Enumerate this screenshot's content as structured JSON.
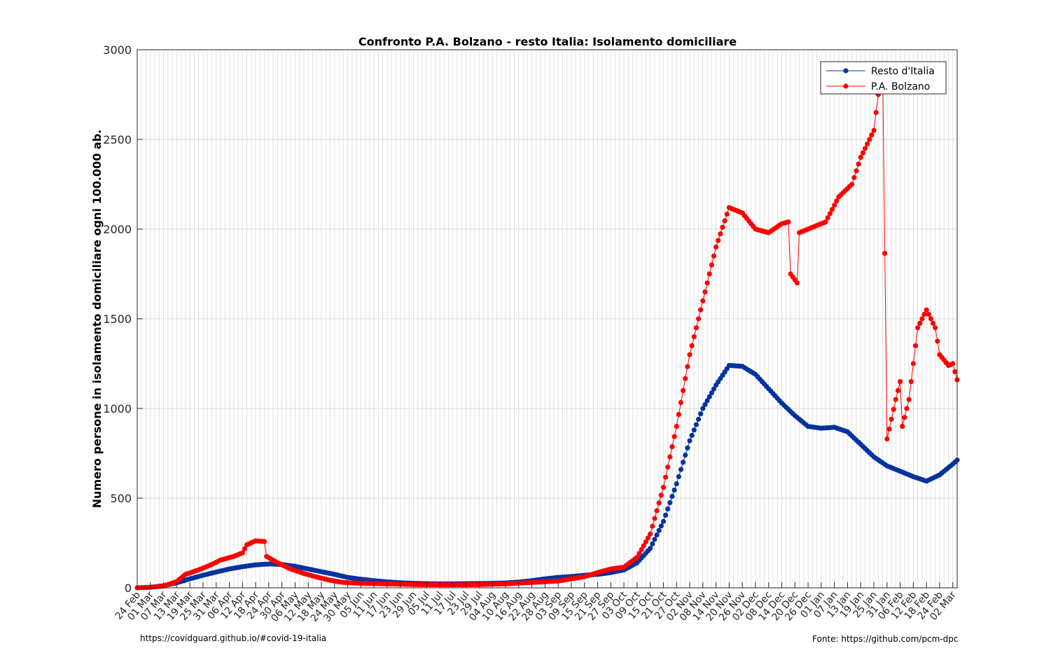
{
  "chart_data": {
    "type": "line",
    "title": "Confronto P.A. Bolzano - resto Italia: Isolamento domiciliare",
    "xlabel": "",
    "ylabel": "Numero persone in isolamento domiciliare ogni 100.000 ab.",
    "ylim": [
      0,
      3000
    ],
    "yticks": [
      0,
      500,
      1000,
      1500,
      2000,
      2500,
      3000
    ],
    "x_start_date": "2020-02-24",
    "x_end_date": "2021-03-04",
    "x_tick_labels": [
      "24 Feb",
      "01 Mar",
      "07 Mar",
      "13 Mar",
      "19 Mar",
      "25 Mar",
      "31 Mar",
      "06 Apr",
      "12 Apr",
      "18 Apr",
      "24 Apr",
      "30 Apr",
      "06 May",
      "12 May",
      "18 May",
      "24 May",
      "30 May",
      "05 Jun",
      "11 Jun",
      "17 Jun",
      "23 Jun",
      "29 Jun",
      "05 Jul",
      "11 Jul",
      "17 Jul",
      "23 Jul",
      "29 Jul",
      "04 Aug",
      "10 Aug",
      "16 Aug",
      "22 Aug",
      "28 Aug",
      "03 Sep",
      "09 Sep",
      "15 Sep",
      "21 Sep",
      "27 Sep",
      "03 Oct",
      "09 Oct",
      "15 Oct",
      "21 Oct",
      "27 Oct",
      "02 Nov",
      "08 Nov",
      "14 Nov",
      "20 Nov",
      "26 Nov",
      "02 Dec",
      "08 Dec",
      "14 Dec",
      "20 Dec",
      "26 Dec",
      "01 Jan",
      "07 Jan",
      "13 Jan",
      "19 Jan",
      "25 Jan",
      "31 Jan",
      "06 Feb",
      "12 Feb",
      "18 Feb",
      "24 Feb",
      "02 Mar"
    ],
    "grid": true,
    "legend_position": "top-right",
    "series": [
      {
        "name": "Resto d'Italia",
        "color": "#0033a0",
        "points": [
          [
            "2020-02-24",
            0
          ],
          [
            "2020-03-01",
            3
          ],
          [
            "2020-03-07",
            12
          ],
          [
            "2020-03-13",
            28
          ],
          [
            "2020-03-19",
            50
          ],
          [
            "2020-03-25",
            70
          ],
          [
            "2020-03-31",
            88
          ],
          [
            "2020-04-06",
            105
          ],
          [
            "2020-04-12",
            118
          ],
          [
            "2020-04-18",
            128
          ],
          [
            "2020-04-24",
            133
          ],
          [
            "2020-04-30",
            130
          ],
          [
            "2020-05-06",
            120
          ],
          [
            "2020-05-12",
            105
          ],
          [
            "2020-05-18",
            90
          ],
          [
            "2020-05-24",
            75
          ],
          [
            "2020-05-30",
            58
          ],
          [
            "2020-06-05",
            48
          ],
          [
            "2020-06-11",
            40
          ],
          [
            "2020-06-17",
            33
          ],
          [
            "2020-06-23",
            28
          ],
          [
            "2020-06-29",
            25
          ],
          [
            "2020-07-05",
            23
          ],
          [
            "2020-07-11",
            22
          ],
          [
            "2020-07-17",
            22
          ],
          [
            "2020-07-23",
            23
          ],
          [
            "2020-07-29",
            24
          ],
          [
            "2020-08-04",
            25
          ],
          [
            "2020-08-10",
            27
          ],
          [
            "2020-08-16",
            32
          ],
          [
            "2020-08-22",
            40
          ],
          [
            "2020-08-28",
            50
          ],
          [
            "2020-09-03",
            58
          ],
          [
            "2020-09-09",
            63
          ],
          [
            "2020-09-15",
            70
          ],
          [
            "2020-09-21",
            75
          ],
          [
            "2020-09-27",
            85
          ],
          [
            "2020-10-03",
            100
          ],
          [
            "2020-10-09",
            140
          ],
          [
            "2020-10-15",
            220
          ],
          [
            "2020-10-21",
            370
          ],
          [
            "2020-10-27",
            580
          ],
          [
            "2020-11-02",
            820
          ],
          [
            "2020-11-08",
            1000
          ],
          [
            "2020-11-14",
            1130
          ],
          [
            "2020-11-20",
            1240
          ],
          [
            "2020-11-26",
            1235
          ],
          [
            "2020-12-02",
            1190
          ],
          [
            "2020-12-08",
            1110
          ],
          [
            "2020-12-14",
            1030
          ],
          [
            "2020-12-20",
            960
          ],
          [
            "2020-12-26",
            900
          ],
          [
            "2021-01-01",
            890
          ],
          [
            "2021-01-07",
            895
          ],
          [
            "2021-01-13",
            870
          ],
          [
            "2021-01-19",
            800
          ],
          [
            "2021-01-25",
            730
          ],
          [
            "2021-01-31",
            680
          ],
          [
            "2021-02-06",
            650
          ],
          [
            "2021-02-12",
            620
          ],
          [
            "2021-02-18",
            595
          ],
          [
            "2021-02-24",
            630
          ],
          [
            "2021-03-02",
            690
          ],
          [
            "2021-03-04",
            712
          ]
        ]
      },
      {
        "name": "P.A. Bolzano",
        "color": "#ff0000",
        "points": [
          [
            "2020-02-24",
            0
          ],
          [
            "2020-03-01",
            3
          ],
          [
            "2020-03-07",
            10
          ],
          [
            "2020-03-13",
            35
          ],
          [
            "2020-03-17",
            75
          ],
          [
            "2020-03-23",
            100
          ],
          [
            "2020-03-29",
            130
          ],
          [
            "2020-04-02",
            155
          ],
          [
            "2020-04-08",
            175
          ],
          [
            "2020-04-12",
            195
          ],
          [
            "2020-04-14",
            240
          ],
          [
            "2020-04-18",
            262
          ],
          [
            "2020-04-22",
            258
          ],
          [
            "2020-04-23",
            175
          ],
          [
            "2020-04-28",
            140
          ],
          [
            "2020-05-04",
            105
          ],
          [
            "2020-05-10",
            80
          ],
          [
            "2020-05-16",
            60
          ],
          [
            "2020-05-22",
            42
          ],
          [
            "2020-05-28",
            30
          ],
          [
            "2020-06-05",
            25
          ],
          [
            "2020-06-17",
            22
          ],
          [
            "2020-07-01",
            18
          ],
          [
            "2020-07-15",
            17
          ],
          [
            "2020-07-29",
            18
          ],
          [
            "2020-08-10",
            22
          ],
          [
            "2020-08-22",
            30
          ],
          [
            "2020-09-03",
            38
          ],
          [
            "2020-09-15",
            62
          ],
          [
            "2020-09-21",
            85
          ],
          [
            "2020-09-27",
            105
          ],
          [
            "2020-10-03",
            115
          ],
          [
            "2020-10-09",
            170
          ],
          [
            "2020-10-15",
            300
          ],
          [
            "2020-10-21",
            560
          ],
          [
            "2020-10-27",
            900
          ],
          [
            "2020-11-02",
            1300
          ],
          [
            "2020-11-08",
            1600
          ],
          [
            "2020-11-14",
            1900
          ],
          [
            "2020-11-20",
            2120
          ],
          [
            "2020-11-26",
            2090
          ],
          [
            "2020-12-02",
            2000
          ],
          [
            "2020-12-08",
            1980
          ],
          [
            "2020-12-14",
            2030
          ],
          [
            "2020-12-17",
            2040
          ],
          [
            "2020-12-18",
            1750
          ],
          [
            "2020-12-21",
            1700
          ],
          [
            "2020-12-22",
            1980
          ],
          [
            "2020-12-28",
            2010
          ],
          [
            "2021-01-03",
            2040
          ],
          [
            "2021-01-09",
            2180
          ],
          [
            "2021-01-15",
            2250
          ],
          [
            "2021-01-19",
            2400
          ],
          [
            "2021-01-25",
            2550
          ],
          [
            "2021-01-27",
            2750
          ],
          [
            "2021-01-29",
            2900
          ],
          [
            "2021-01-31",
            830
          ],
          [
            "2021-02-04",
            1050
          ],
          [
            "2021-02-06",
            1150
          ],
          [
            "2021-02-07",
            900
          ],
          [
            "2021-02-10",
            1050
          ],
          [
            "2021-02-14",
            1450
          ],
          [
            "2021-02-18",
            1550
          ],
          [
            "2021-02-22",
            1450
          ],
          [
            "2021-02-24",
            1300
          ],
          [
            "2021-02-28",
            1240
          ],
          [
            "2021-03-02",
            1250
          ],
          [
            "2021-03-04",
            1160
          ]
        ]
      }
    ]
  },
  "footer": {
    "left": "https://covidguard.github.io/#covid-19-italia",
    "right": "Fonte: https://github.com/pcm-dpc"
  }
}
